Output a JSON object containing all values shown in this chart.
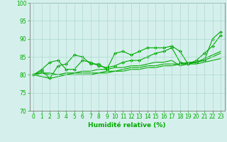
{
  "xlabel": "Humidité relative (%)",
  "bg_color": "#d5f0ec",
  "grid_color": "#aad8cc",
  "line_color": "#00aa00",
  "xlim": [
    -0.5,
    23.5
  ],
  "ylim": [
    70,
    100
  ],
  "yticks": [
    70,
    75,
    80,
    85,
    90,
    95,
    100
  ],
  "xticks": [
    0,
    1,
    2,
    3,
    4,
    5,
    6,
    7,
    8,
    9,
    10,
    11,
    12,
    13,
    14,
    15,
    16,
    17,
    18,
    19,
    20,
    21,
    22,
    23
  ],
  "series": [
    [
      80.0,
      81.0,
      79.0,
      82.5,
      83.0,
      85.5,
      85.0,
      83.0,
      83.0,
      81.5,
      86.0,
      86.5,
      85.5,
      86.5,
      87.5,
      87.5,
      87.5,
      88.0,
      86.5,
      83.0,
      83.5,
      84.0,
      90.0,
      92.0
    ],
    [
      80.0,
      81.5,
      83.5,
      84.0,
      81.5,
      81.5,
      84.0,
      83.5,
      82.5,
      82.0,
      82.5,
      83.5,
      84.0,
      84.0,
      85.0,
      86.0,
      86.5,
      87.5,
      83.5,
      83.0,
      84.0,
      86.0,
      88.0,
      91.0
    ],
    [
      80.0,
      80.5,
      80.5,
      80.0,
      80.0,
      80.5,
      81.0,
      81.0,
      81.5,
      81.5,
      82.0,
      82.0,
      82.5,
      82.5,
      83.0,
      83.5,
      83.5,
      84.0,
      82.5,
      83.0,
      83.5,
      84.5,
      85.5,
      86.5
    ],
    [
      80.0,
      80.5,
      80.0,
      80.0,
      80.5,
      80.5,
      80.5,
      80.5,
      80.5,
      81.0,
      81.0,
      81.5,
      82.0,
      82.0,
      82.5,
      82.5,
      83.0,
      83.0,
      83.0,
      83.5,
      83.5,
      84.0,
      85.0,
      86.0
    ],
    [
      80.0,
      79.5,
      79.0,
      79.5,
      80.0,
      80.0,
      80.0,
      80.0,
      80.5,
      80.5,
      81.0,
      81.0,
      81.5,
      81.5,
      82.0,
      82.0,
      82.5,
      82.5,
      83.0,
      83.0,
      83.0,
      83.5,
      84.0,
      84.5
    ]
  ],
  "marker_series": [
    0,
    1
  ],
  "label_fontsize": 6.5,
  "tick_fontsize": 5.5
}
